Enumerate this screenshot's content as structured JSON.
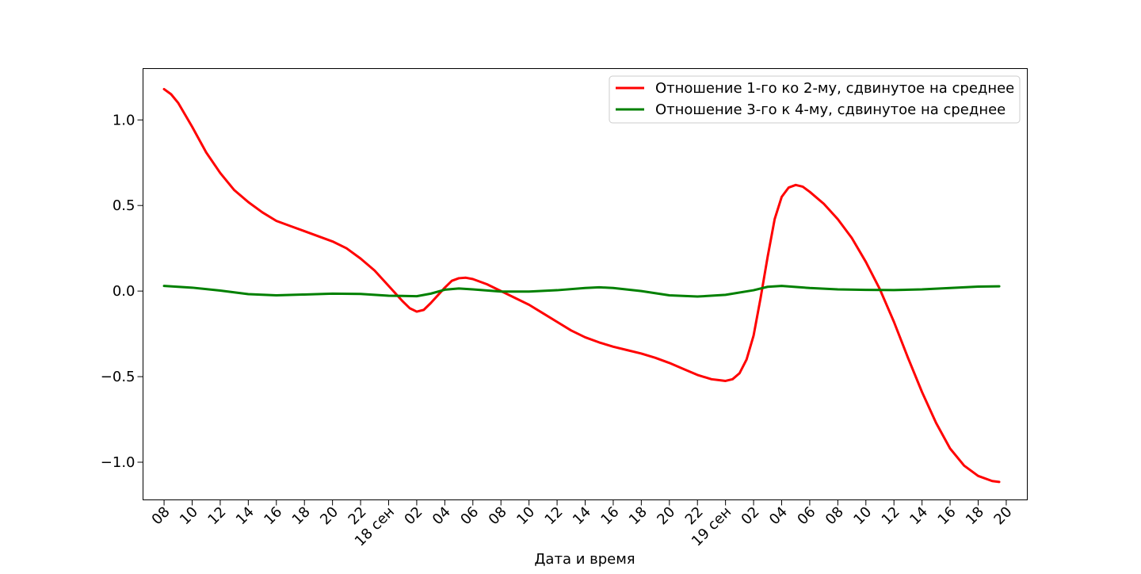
{
  "chart_data": {
    "type": "line",
    "title": "",
    "xlabel": "Дата и время",
    "ylabel": "",
    "x_unit": "hour",
    "xlim": [
      "2023-09-17 06:30",
      "2023-09-19 21:30"
    ],
    "ylim": [
      -1.22,
      1.3
    ],
    "grid": false,
    "legend_position": "upper right",
    "x_ticks": [
      {
        "t": "2023-09-17 08:00",
        "label": "08"
      },
      {
        "t": "2023-09-17 10:00",
        "label": "10"
      },
      {
        "t": "2023-09-17 12:00",
        "label": "12"
      },
      {
        "t": "2023-09-17 14:00",
        "label": "14"
      },
      {
        "t": "2023-09-17 16:00",
        "label": "16"
      },
      {
        "t": "2023-09-17 18:00",
        "label": "18"
      },
      {
        "t": "2023-09-17 20:00",
        "label": "20"
      },
      {
        "t": "2023-09-17 22:00",
        "label": "22"
      },
      {
        "t": "2023-09-18 00:00",
        "label": "18 сен"
      },
      {
        "t": "2023-09-18 02:00",
        "label": "02"
      },
      {
        "t": "2023-09-18 04:00",
        "label": "04"
      },
      {
        "t": "2023-09-18 06:00",
        "label": "06"
      },
      {
        "t": "2023-09-18 08:00",
        "label": "08"
      },
      {
        "t": "2023-09-18 10:00",
        "label": "10"
      },
      {
        "t": "2023-09-18 12:00",
        "label": "12"
      },
      {
        "t": "2023-09-18 14:00",
        "label": "14"
      },
      {
        "t": "2023-09-18 16:00",
        "label": "16"
      },
      {
        "t": "2023-09-18 18:00",
        "label": "18"
      },
      {
        "t": "2023-09-18 20:00",
        "label": "20"
      },
      {
        "t": "2023-09-18 22:00",
        "label": "22"
      },
      {
        "t": "2023-09-19 00:00",
        "label": "19 сен"
      },
      {
        "t": "2023-09-19 02:00",
        "label": "02"
      },
      {
        "t": "2023-09-19 04:00",
        "label": "04"
      },
      {
        "t": "2023-09-19 06:00",
        "label": "06"
      },
      {
        "t": "2023-09-19 08:00",
        "label": "08"
      },
      {
        "t": "2023-09-19 10:00",
        "label": "10"
      },
      {
        "t": "2023-09-19 12:00",
        "label": "12"
      },
      {
        "t": "2023-09-19 14:00",
        "label": "14"
      },
      {
        "t": "2023-09-19 16:00",
        "label": "16"
      },
      {
        "t": "2023-09-19 18:00",
        "label": "18"
      },
      {
        "t": "2023-09-19 20:00",
        "label": "20"
      }
    ],
    "y_ticks": [
      {
        "v": -1.0,
        "label": "−1.0"
      },
      {
        "v": -0.5,
        "label": "−0.5"
      },
      {
        "v": 0.0,
        "label": "0.0"
      },
      {
        "v": 0.5,
        "label": "0.5"
      },
      {
        "v": 1.0,
        "label": "1.0"
      }
    ],
    "series": [
      {
        "name": "Отношение 1-го ко 2-му, сдвинутое на среднее",
        "color": "#ff0000",
        "points": [
          [
            "2023-09-17 08:00",
            1.18
          ],
          [
            "2023-09-17 08:30",
            1.15
          ],
          [
            "2023-09-17 09:00",
            1.1
          ],
          [
            "2023-09-17 10:00",
            0.96
          ],
          [
            "2023-09-17 11:00",
            0.81
          ],
          [
            "2023-09-17 12:00",
            0.69
          ],
          [
            "2023-09-17 13:00",
            0.59
          ],
          [
            "2023-09-17 14:00",
            0.52
          ],
          [
            "2023-09-17 15:00",
            0.46
          ],
          [
            "2023-09-17 16:00",
            0.41
          ],
          [
            "2023-09-17 17:00",
            0.38
          ],
          [
            "2023-09-17 18:00",
            0.35
          ],
          [
            "2023-09-17 19:00",
            0.32
          ],
          [
            "2023-09-17 20:00",
            0.29
          ],
          [
            "2023-09-17 21:00",
            0.25
          ],
          [
            "2023-09-17 22:00",
            0.19
          ],
          [
            "2023-09-17 23:00",
            0.12
          ],
          [
            "2023-09-18 00:00",
            0.03
          ],
          [
            "2023-09-18 01:00",
            -0.06
          ],
          [
            "2023-09-18 01:30",
            -0.1
          ],
          [
            "2023-09-18 02:00",
            -0.12
          ],
          [
            "2023-09-18 02:30",
            -0.11
          ],
          [
            "2023-09-18 03:00",
            -0.07
          ],
          [
            "2023-09-18 04:00",
            0.02
          ],
          [
            "2023-09-18 04:30",
            0.06
          ],
          [
            "2023-09-18 05:00",
            0.075
          ],
          [
            "2023-09-18 05:30",
            0.078
          ],
          [
            "2023-09-18 06:00",
            0.07
          ],
          [
            "2023-09-18 07:00",
            0.04
          ],
          [
            "2023-09-18 08:00",
            0.0
          ],
          [
            "2023-09-18 09:00",
            -0.04
          ],
          [
            "2023-09-18 10:00",
            -0.08
          ],
          [
            "2023-09-18 11:00",
            -0.13
          ],
          [
            "2023-09-18 12:00",
            -0.18
          ],
          [
            "2023-09-18 13:00",
            -0.23
          ],
          [
            "2023-09-18 14:00",
            -0.27
          ],
          [
            "2023-09-18 15:00",
            -0.3
          ],
          [
            "2023-09-18 16:00",
            -0.325
          ],
          [
            "2023-09-18 17:00",
            -0.345
          ],
          [
            "2023-09-18 18:00",
            -0.365
          ],
          [
            "2023-09-18 19:00",
            -0.39
          ],
          [
            "2023-09-18 20:00",
            -0.42
          ],
          [
            "2023-09-18 21:00",
            -0.455
          ],
          [
            "2023-09-18 22:00",
            -0.49
          ],
          [
            "2023-09-18 23:00",
            -0.515
          ],
          [
            "2023-09-18 23:30",
            -0.52
          ],
          [
            "2023-09-19 00:00",
            -0.525
          ],
          [
            "2023-09-19 00:30",
            -0.515
          ],
          [
            "2023-09-19 01:00",
            -0.48
          ],
          [
            "2023-09-19 01:30",
            -0.4
          ],
          [
            "2023-09-19 02:00",
            -0.26
          ],
          [
            "2023-09-19 02:30",
            -0.04
          ],
          [
            "2023-09-19 03:00",
            0.2
          ],
          [
            "2023-09-19 03:30",
            0.42
          ],
          [
            "2023-09-19 04:00",
            0.55
          ],
          [
            "2023-09-19 04:30",
            0.605
          ],
          [
            "2023-09-19 05:00",
            0.62
          ],
          [
            "2023-09-19 05:30",
            0.61
          ],
          [
            "2023-09-19 06:00",
            0.58
          ],
          [
            "2023-09-19 07:00",
            0.51
          ],
          [
            "2023-09-19 08:00",
            0.42
          ],
          [
            "2023-09-19 09:00",
            0.31
          ],
          [
            "2023-09-19 10:00",
            0.17
          ],
          [
            "2023-09-19 11:00",
            0.01
          ],
          [
            "2023-09-19 12:00",
            -0.18
          ],
          [
            "2023-09-19 13:00",
            -0.39
          ],
          [
            "2023-09-19 14:00",
            -0.59
          ],
          [
            "2023-09-19 15:00",
            -0.77
          ],
          [
            "2023-09-19 16:00",
            -0.92
          ],
          [
            "2023-09-19 17:00",
            -1.02
          ],
          [
            "2023-09-19 18:00",
            -1.08
          ],
          [
            "2023-09-19 19:00",
            -1.11
          ],
          [
            "2023-09-19 19:30",
            -1.115
          ]
        ]
      },
      {
        "name": "Отношение 3-го к 4-му, сдвинутое на среднее",
        "color": "#008000",
        "points": [
          [
            "2023-09-17 08:00",
            0.03
          ],
          [
            "2023-09-17 10:00",
            0.02
          ],
          [
            "2023-09-17 12:00",
            0.003
          ],
          [
            "2023-09-17 14:00",
            -0.018
          ],
          [
            "2023-09-17 16:00",
            -0.025
          ],
          [
            "2023-09-17 18:00",
            -0.02
          ],
          [
            "2023-09-17 20:00",
            -0.015
          ],
          [
            "2023-09-17 22:00",
            -0.017
          ],
          [
            "2023-09-18 00:00",
            -0.027
          ],
          [
            "2023-09-18 02:00",
            -0.03
          ],
          [
            "2023-09-18 03:00",
            -0.015
          ],
          [
            "2023-09-18 04:00",
            0.008
          ],
          [
            "2023-09-18 05:00",
            0.015
          ],
          [
            "2023-09-18 06:00",
            0.01
          ],
          [
            "2023-09-18 08:00",
            -0.003
          ],
          [
            "2023-09-18 10:00",
            -0.003
          ],
          [
            "2023-09-18 12:00",
            0.005
          ],
          [
            "2023-09-18 14:00",
            0.018
          ],
          [
            "2023-09-18 15:00",
            0.022
          ],
          [
            "2023-09-18 16:00",
            0.018
          ],
          [
            "2023-09-18 18:00",
            0.0
          ],
          [
            "2023-09-18 20:00",
            -0.025
          ],
          [
            "2023-09-18 22:00",
            -0.032
          ],
          [
            "2023-09-19 00:00",
            -0.022
          ],
          [
            "2023-09-19 02:00",
            0.005
          ],
          [
            "2023-09-19 03:00",
            0.025
          ],
          [
            "2023-09-19 04:00",
            0.03
          ],
          [
            "2023-09-19 06:00",
            0.018
          ],
          [
            "2023-09-19 08:00",
            0.01
          ],
          [
            "2023-09-19 10:00",
            0.007
          ],
          [
            "2023-09-19 12:00",
            0.006
          ],
          [
            "2023-09-19 14:00",
            0.01
          ],
          [
            "2023-09-19 16:00",
            0.018
          ],
          [
            "2023-09-19 18:00",
            0.026
          ],
          [
            "2023-09-19 19:30",
            0.028
          ]
        ]
      }
    ]
  }
}
